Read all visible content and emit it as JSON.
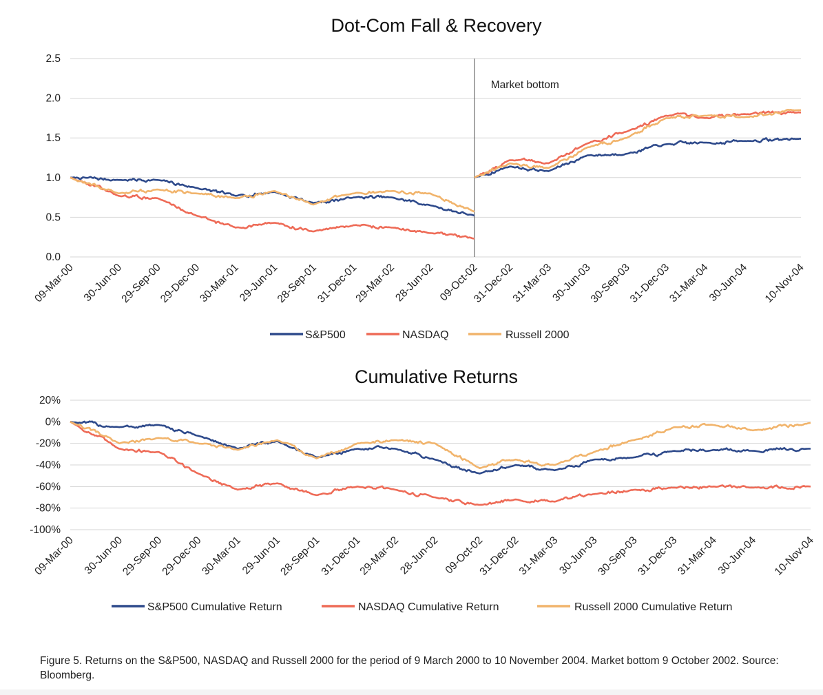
{
  "chart_data": [
    {
      "type": "line",
      "title": "Dot-Com Fall & Recovery",
      "ylim": [
        0.0,
        2.5
      ],
      "yticks": [
        "0.0",
        "0.5",
        "1.0",
        "1.5",
        "2.0",
        "2.5"
      ],
      "ytick_values": [
        0,
        0.5,
        1.0,
        1.5,
        2.0,
        2.5
      ],
      "xlim": [
        "09-Mar-00",
        "10-Nov-04"
      ],
      "xticks": [
        "09-Mar-00",
        "30-Jun-00",
        "29-Sep-00",
        "29-Dec-00",
        "30-Mar-01",
        "29-Jun-01",
        "28-Sep-01",
        "31-Dec-01",
        "29-Mar-02",
        "28-Jun-02",
        "09-Oct-02",
        "31-Dec-02",
        "31-Mar-03",
        "30-Jun-03",
        "30-Sep-03",
        "31-Dec-03",
        "31-Mar-04",
        "30-Jun-04",
        "10-Nov-04"
      ],
      "grid": true,
      "legend_position": "bottom",
      "annotation": {
        "x": "09-Oct-02",
        "label": "Market bottom"
      },
      "series": [
        {
          "name": "S&P500",
          "color": "#2e4a8b",
          "points": [
            [
              "09-Mar-00",
              1.0
            ],
            [
              "30-Jun-00",
              0.97
            ],
            [
              "29-Sep-00",
              0.97
            ],
            [
              "29-Dec-00",
              0.87
            ],
            [
              "30-Mar-01",
              0.77
            ],
            [
              "29-Jun-01",
              0.82
            ],
            [
              "28-Sep-01",
              0.68
            ],
            [
              "31-Dec-01",
              0.75
            ],
            [
              "29-Mar-02",
              0.75
            ],
            [
              "28-Jun-02",
              0.65
            ],
            [
              "09-Oct-02",
              0.52
            ],
            [
              "09-Oct-02",
              1.0
            ],
            [
              "31-Dec-02",
              1.14
            ],
            [
              "31-Mar-03",
              1.08
            ],
            [
              "30-Jun-03",
              1.28
            ],
            [
              "30-Sep-03",
              1.3
            ],
            [
              "31-Dec-03",
              1.42
            ],
            [
              "31-Mar-04",
              1.44
            ],
            [
              "30-Jun-04",
              1.46
            ],
            [
              "10-Nov-04",
              1.49
            ]
          ]
        },
        {
          "name": "NASDAQ",
          "color": "#ee6b57",
          "points": [
            [
              "09-Mar-00",
              1.0
            ],
            [
              "30-Jun-00",
              0.77
            ],
            [
              "29-Sep-00",
              0.74
            ],
            [
              "29-Dec-00",
              0.52
            ],
            [
              "30-Mar-01",
              0.37
            ],
            [
              "29-Jun-01",
              0.43
            ],
            [
              "28-Sep-01",
              0.32
            ],
            [
              "31-Dec-01",
              0.4
            ],
            [
              "29-Mar-02",
              0.37
            ],
            [
              "28-Jun-02",
              0.3
            ],
            [
              "09-Oct-02",
              0.23
            ],
            [
              "09-Oct-02",
              1.0
            ],
            [
              "31-Dec-02",
              1.22
            ],
            [
              "31-Mar-03",
              1.18
            ],
            [
              "30-Jun-03",
              1.43
            ],
            [
              "30-Sep-03",
              1.58
            ],
            [
              "31-Dec-03",
              1.78
            ],
            [
              "31-Mar-04",
              1.75
            ],
            [
              "30-Jun-04",
              1.8
            ],
            [
              "10-Nov-04",
              1.82
            ]
          ]
        },
        {
          "name": "Russell 2000",
          "color": "#f1b46c",
          "points": [
            [
              "09-Mar-00",
              1.0
            ],
            [
              "30-Jun-00",
              0.8
            ],
            [
              "29-Sep-00",
              0.85
            ],
            [
              "29-Dec-00",
              0.8
            ],
            [
              "30-Mar-01",
              0.74
            ],
            [
              "29-Jun-01",
              0.83
            ],
            [
              "28-Sep-01",
              0.66
            ],
            [
              "31-Dec-01",
              0.8
            ],
            [
              "29-Mar-02",
              0.83
            ],
            [
              "28-Jun-02",
              0.8
            ],
            [
              "09-Oct-02",
              0.57
            ],
            [
              "09-Oct-02",
              1.0
            ],
            [
              "31-Dec-02",
              1.18
            ],
            [
              "31-Mar-03",
              1.12
            ],
            [
              "30-Jun-03",
              1.38
            ],
            [
              "30-Sep-03",
              1.5
            ],
            [
              "31-Dec-03",
              1.75
            ],
            [
              "31-Mar-04",
              1.78
            ],
            [
              "30-Jun-04",
              1.76
            ],
            [
              "10-Nov-04",
              1.85
            ]
          ]
        }
      ]
    },
    {
      "type": "line",
      "title": "Cumulative Returns",
      "ylim": [
        -100,
        20
      ],
      "yticks": [
        "20%",
        "0%",
        "-20%",
        "-40%",
        "-60%",
        "-80%",
        "-100%"
      ],
      "ytick_values": [
        20,
        0,
        -20,
        -40,
        -60,
        -80,
        -100
      ],
      "xlim": [
        "09-Mar-00",
        "10-Nov-04"
      ],
      "xticks": [
        "09-Mar-00",
        "30-Jun-00",
        "29-Sep-00",
        "29-Dec-00",
        "30-Mar-01",
        "29-Jun-01",
        "28-Sep-01",
        "31-Dec-01",
        "29-Mar-02",
        "28-Jun-02",
        "09-Oct-02",
        "31-Dec-02",
        "31-Mar-03",
        "30-Jun-03",
        "30-Sep-03",
        "31-Dec-03",
        "31-Mar-04",
        "30-Jun-04",
        "10-Nov-04"
      ],
      "grid": true,
      "legend_position": "bottom",
      "series": [
        {
          "name": "S&P500 Cumulative Return",
          "color": "#2e4a8b",
          "points": [
            [
              "09-Mar-00",
              0
            ],
            [
              "30-Jun-00",
              -5
            ],
            [
              "29-Sep-00",
              -3
            ],
            [
              "29-Dec-00",
              -13
            ],
            [
              "30-Mar-01",
              -25
            ],
            [
              "29-Jun-01",
              -18
            ],
            [
              "28-Sep-01",
              -33
            ],
            [
              "31-Dec-01",
              -25
            ],
            [
              "29-Mar-02",
              -25
            ],
            [
              "28-Jun-02",
              -35
            ],
            [
              "09-Oct-02",
              -48
            ],
            [
              "31-Dec-02",
              -40
            ],
            [
              "31-Mar-03",
              -45
            ],
            [
              "30-Jun-03",
              -35
            ],
            [
              "30-Sep-03",
              -33
            ],
            [
              "31-Dec-03",
              -27
            ],
            [
              "31-Mar-04",
              -26
            ],
            [
              "30-Jun-04",
              -27
            ],
            [
              "10-Nov-04",
              -25
            ]
          ]
        },
        {
          "name": "NASDAQ Cumulative Return",
          "color": "#ee6b57",
          "points": [
            [
              "09-Mar-00",
              0
            ],
            [
              "30-Jun-00",
              -25
            ],
            [
              "29-Sep-00",
              -28
            ],
            [
              "29-Dec-00",
              -48
            ],
            [
              "30-Mar-01",
              -63
            ],
            [
              "29-Jun-01",
              -57
            ],
            [
              "28-Sep-01",
              -68
            ],
            [
              "31-Dec-01",
              -60
            ],
            [
              "29-Mar-02",
              -63
            ],
            [
              "28-Jun-02",
              -70
            ],
            [
              "09-Oct-02",
              -77
            ],
            [
              "31-Dec-02",
              -72
            ],
            [
              "31-Mar-03",
              -74
            ],
            [
              "30-Jun-03",
              -67
            ],
            [
              "30-Sep-03",
              -63
            ],
            [
              "31-Dec-03",
              -61
            ],
            [
              "31-Mar-04",
              -60
            ],
            [
              "30-Jun-04",
              -61
            ],
            [
              "10-Nov-04",
              -60
            ]
          ]
        },
        {
          "name": "Russell 2000 Cumulative Return",
          "color": "#f1b46c",
          "points": [
            [
              "09-Mar-00",
              0
            ],
            [
              "30-Jun-00",
              -20
            ],
            [
              "29-Sep-00",
              -15
            ],
            [
              "29-Dec-00",
              -20
            ],
            [
              "30-Mar-01",
              -26
            ],
            [
              "29-Jun-01",
              -17
            ],
            [
              "28-Sep-01",
              -34
            ],
            [
              "31-Dec-01",
              -20
            ],
            [
              "29-Mar-02",
              -17
            ],
            [
              "28-Jun-02",
              -20
            ],
            [
              "09-Oct-02",
              -43
            ],
            [
              "31-Dec-02",
              -35
            ],
            [
              "31-Mar-03",
              -40
            ],
            [
              "30-Jun-03",
              -28
            ],
            [
              "30-Sep-03",
              -17
            ],
            [
              "31-Dec-03",
              -5
            ],
            [
              "31-Mar-04",
              -3
            ],
            [
              "30-Jun-04",
              -8
            ],
            [
              "10-Nov-04",
              -1
            ]
          ]
        }
      ]
    }
  ],
  "caption": "Figure 5. Returns on the S&P500, NASDAQ and Russell 2000 for the period of 9 March 2000 to 10 November 2004. Market bottom 9 October 2002. Source: Bloomberg."
}
